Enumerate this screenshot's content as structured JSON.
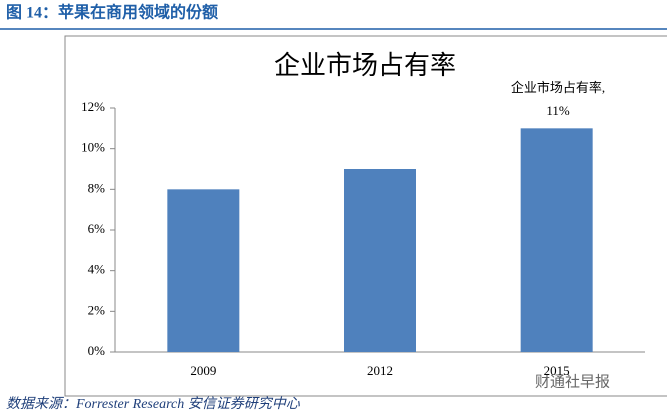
{
  "header": {
    "title": "图 14：苹果在商用领域的份额"
  },
  "chart_data": {
    "type": "bar",
    "title": "企业市场占有率",
    "categories": [
      "2009",
      "2012",
      "2015"
    ],
    "values": [
      8,
      9,
      11
    ],
    "color": "#4f81bd",
    "ylim": [
      0,
      12
    ],
    "yticks": [
      {
        "value": 0,
        "label": "0%"
      },
      {
        "value": 2,
        "label": "2%"
      },
      {
        "value": 4,
        "label": "4%"
      },
      {
        "value": 6,
        "label": "6%"
      },
      {
        "value": 8,
        "label": "8%"
      },
      {
        "value": 10,
        "label": "10%"
      },
      {
        "value": 12,
        "label": "12%"
      }
    ],
    "grid": false,
    "annotation": "企业市场占有率, 11%"
  },
  "source": "数据来源：Forrester Research 安信证券研究中心",
  "watermark": "财通社早报"
}
